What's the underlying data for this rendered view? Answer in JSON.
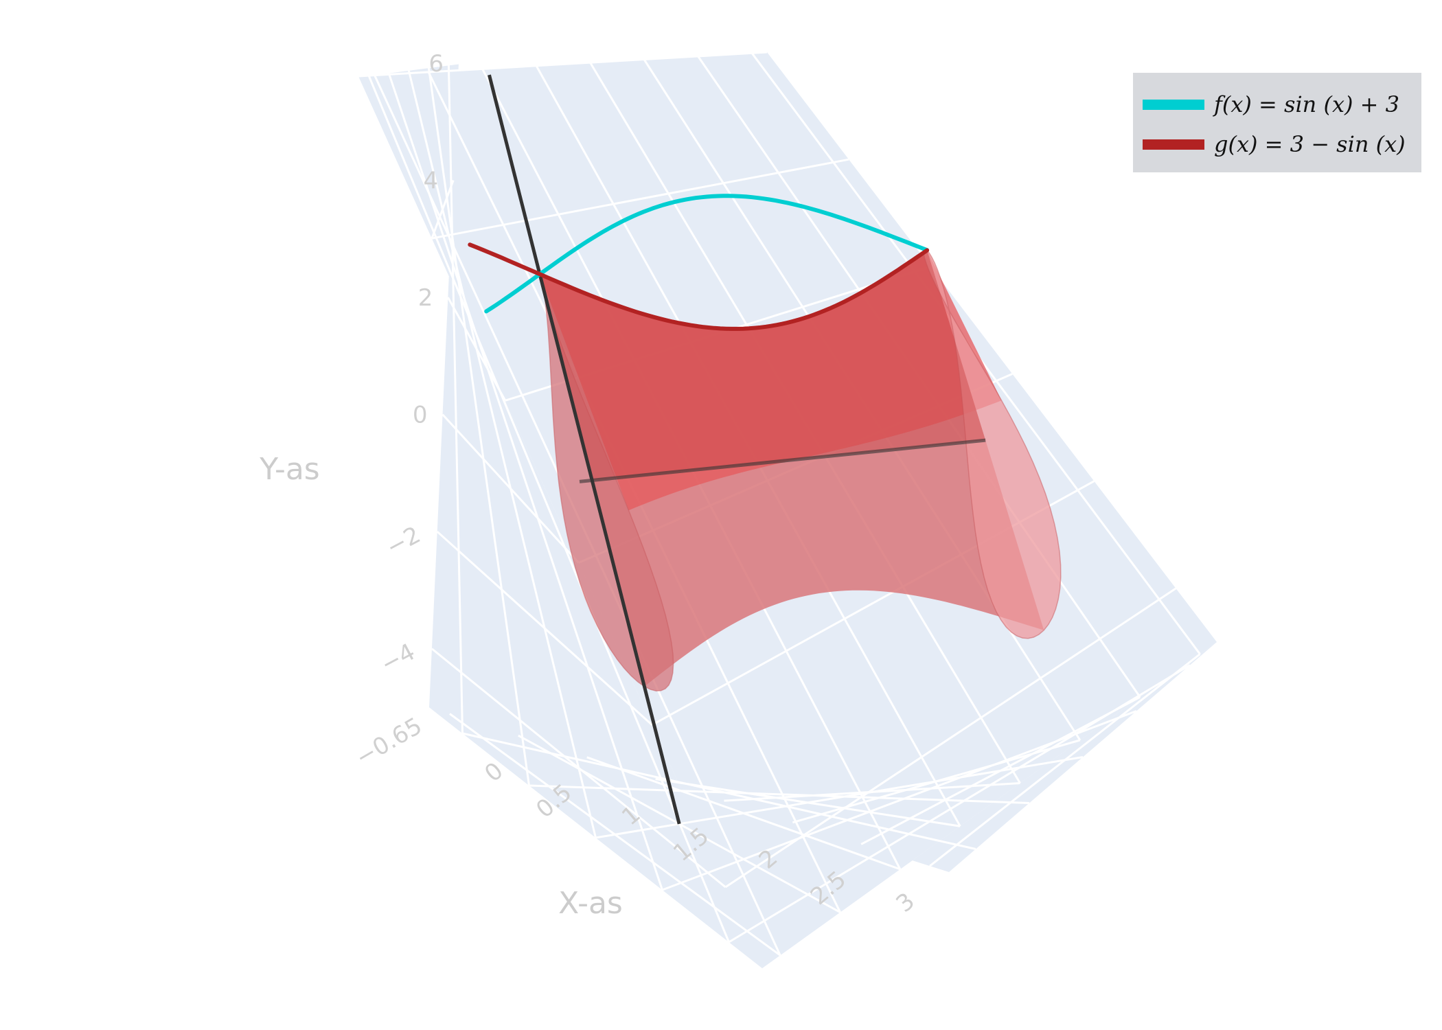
{
  "chart_data": {
    "type": "surface3d",
    "title": "",
    "axes": {
      "x": {
        "label": "X-as",
        "range": [
          -0.65,
          3.14
        ],
        "ticks": [
          "0",
          "0.5",
          "1",
          "1.5",
          "2",
          "2.5",
          "3"
        ]
      },
      "y": {
        "label": "Y-as",
        "range": [
          -5,
          6
        ],
        "ticks": [
          "−4",
          "−2",
          "0",
          "2",
          "4",
          "6"
        ]
      },
      "z": {
        "label": "",
        "range": [
          -5,
          5
        ],
        "ticks": []
      }
    },
    "corner_tick": "−0.65",
    "grid": true,
    "legend": {
      "placement": "top-right"
    },
    "series": [
      {
        "name": "f(x) = sin (x) + 3",
        "kind": "line",
        "color": "#00CED1",
        "expr": "sin(x)+3",
        "x_range": [
          -0.5,
          3.14
        ]
      },
      {
        "name": "g(x) = 3 − sin (x)",
        "kind": "line",
        "color": "#B22222",
        "expr": "3-sin(x)",
        "x_range": [
          -0.5,
          3.14
        ]
      },
      {
        "name": "",
        "kind": "surface_of_revolution",
        "color": "#E05A5A",
        "radius_expr": "3-sin(x)",
        "x_range": [
          0,
          3.14
        ],
        "opacity": 0.7
      }
    ]
  }
}
